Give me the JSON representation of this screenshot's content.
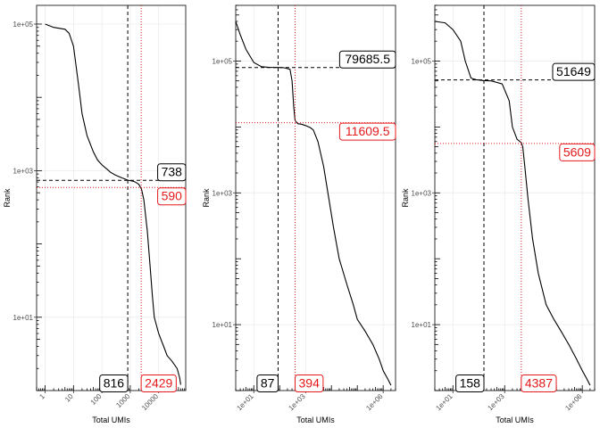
{
  "chart_data": [
    {
      "type": "line",
      "xlabel": "Total UMIs",
      "ylabel": "Rank",
      "x_scale": "log10",
      "y_scale": "log10",
      "xlim": [
        0.5,
        90000
      ],
      "ylim": [
        1,
        180000
      ],
      "x_ticks": [
        {
          "v": 1,
          "label": "1"
        },
        {
          "v": 10,
          "label": "10"
        },
        {
          "v": 100,
          "label": "100"
        },
        {
          "v": 1000,
          "label": "1000"
        },
        {
          "v": 10000,
          "label": "10000"
        }
      ],
      "y_ticks": [
        {
          "v": 10,
          "label": "1e+01"
        },
        {
          "v": 1000,
          "label": "1e+03"
        },
        {
          "v": 100000,
          "label": "1e+05"
        }
      ],
      "x_threshold_black": {
        "value": 816,
        "label": "816"
      },
      "x_threshold_red": {
        "value": 2429,
        "label": "2429"
      },
      "y_threshold_black": {
        "value": 738,
        "label": "738"
      },
      "y_threshold_red": {
        "value": 590,
        "label": "590"
      },
      "x": [
        1,
        2,
        5,
        7,
        10,
        15,
        20,
        30,
        50,
        70,
        100,
        150,
        200,
        300,
        500,
        800,
        1000,
        1200,
        1500,
        2000,
        2500,
        3000,
        4000,
        5000,
        6000,
        7000,
        10000,
        15000,
        20000,
        30000,
        45000,
        55000,
        60000
      ],
      "y": [
        100000,
        90000,
        85000,
        75000,
        50000,
        15000,
        6000,
        3000,
        1800,
        1400,
        1200,
        1050,
        950,
        870,
        800,
        745,
        730,
        720,
        700,
        650,
        560,
        400,
        150,
        50,
        20,
        10,
        6,
        4,
        3,
        2.5,
        2,
        1.5,
        1.2
      ]
    },
    {
      "type": "line",
      "xlabel": "Total UMIs",
      "ylabel": "Rank",
      "x_scale": "log10",
      "y_scale": "log10",
      "xlim": [
        2,
        3000000
      ],
      "ylim": [
        1,
        700000
      ],
      "x_ticks": [
        {
          "v": 10,
          "label": "1e+01"
        },
        {
          "v": 1000,
          "label": "1e+03"
        },
        {
          "v": 1000000,
          "label": "1e+06"
        }
      ],
      "y_ticks": [
        {
          "v": 10,
          "label": "1e+01"
        },
        {
          "v": 1000,
          "label": "1e+03"
        },
        {
          "v": 100000,
          "label": "1e+05"
        }
      ],
      "x_threshold_black": {
        "value": 87,
        "label": "87"
      },
      "x_threshold_red": {
        "value": 394,
        "label": "394"
      },
      "y_threshold_black": {
        "value": 79685.5,
        "label": "79685.5"
      },
      "y_threshold_red": {
        "value": 11609.5,
        "label": "11609.5"
      },
      "x": [
        2,
        3,
        5,
        10,
        20,
        40,
        87,
        150,
        250,
        300,
        350,
        394,
        500,
        700,
        1000,
        1500,
        2000,
        3000,
        5000,
        8000,
        12000,
        20000,
        40000,
        70000,
        100000,
        200000,
        400000,
        700000,
        1000000,
        1500000,
        2000000
      ],
      "y": [
        400000,
        250000,
        150000,
        95000,
        82000,
        80000,
        79685,
        79000,
        75000,
        50000,
        20000,
        12500,
        11200,
        11000,
        10500,
        9800,
        9000,
        6000,
        2500,
        800,
        300,
        100,
        40,
        20,
        12,
        8,
        5,
        3,
        2,
        1.5,
        1.2
      ]
    },
    {
      "type": "line",
      "xlabel": "Total UMIs",
      "ylabel": "Rank",
      "x_scale": "log10",
      "y_scale": "log10",
      "xlim": [
        2,
        3000000
      ],
      "ylim": [
        1,
        700000
      ],
      "x_ticks": [
        {
          "v": 10,
          "label": "1e+01"
        },
        {
          "v": 1000,
          "label": "1e+03"
        },
        {
          "v": 1000000,
          "label": "1e+06"
        }
      ],
      "y_ticks": [
        {
          "v": 10,
          "label": "1e+01"
        },
        {
          "v": 1000,
          "label": "1e+03"
        },
        {
          "v": 100000,
          "label": "1e+05"
        }
      ],
      "x_threshold_black": {
        "value": 158,
        "label": "158"
      },
      "x_threshold_red": {
        "value": 4387,
        "label": "4387"
      },
      "y_threshold_black": {
        "value": 51649,
        "label": "51649"
      },
      "y_threshold_red": {
        "value": 5609,
        "label": "5609"
      },
      "x": [
        2,
        5,
        10,
        20,
        30,
        50,
        80,
        100,
        120,
        158,
        300,
        800,
        1500,
        2000,
        3000,
        4387,
        5000,
        6000,
        8000,
        12000,
        20000,
        40000,
        80000,
        150000,
        300000,
        600000,
        1000000,
        1500000,
        2000000
      ],
      "y": [
        400000,
        380000,
        300000,
        200000,
        100000,
        55000,
        52000,
        51649,
        51000,
        50500,
        50000,
        45000,
        25000,
        10000,
        6500,
        5800,
        5000,
        2500,
        800,
        200,
        60,
        20,
        12,
        8,
        5,
        3,
        2,
        1.5,
        1.2
      ]
    }
  ]
}
